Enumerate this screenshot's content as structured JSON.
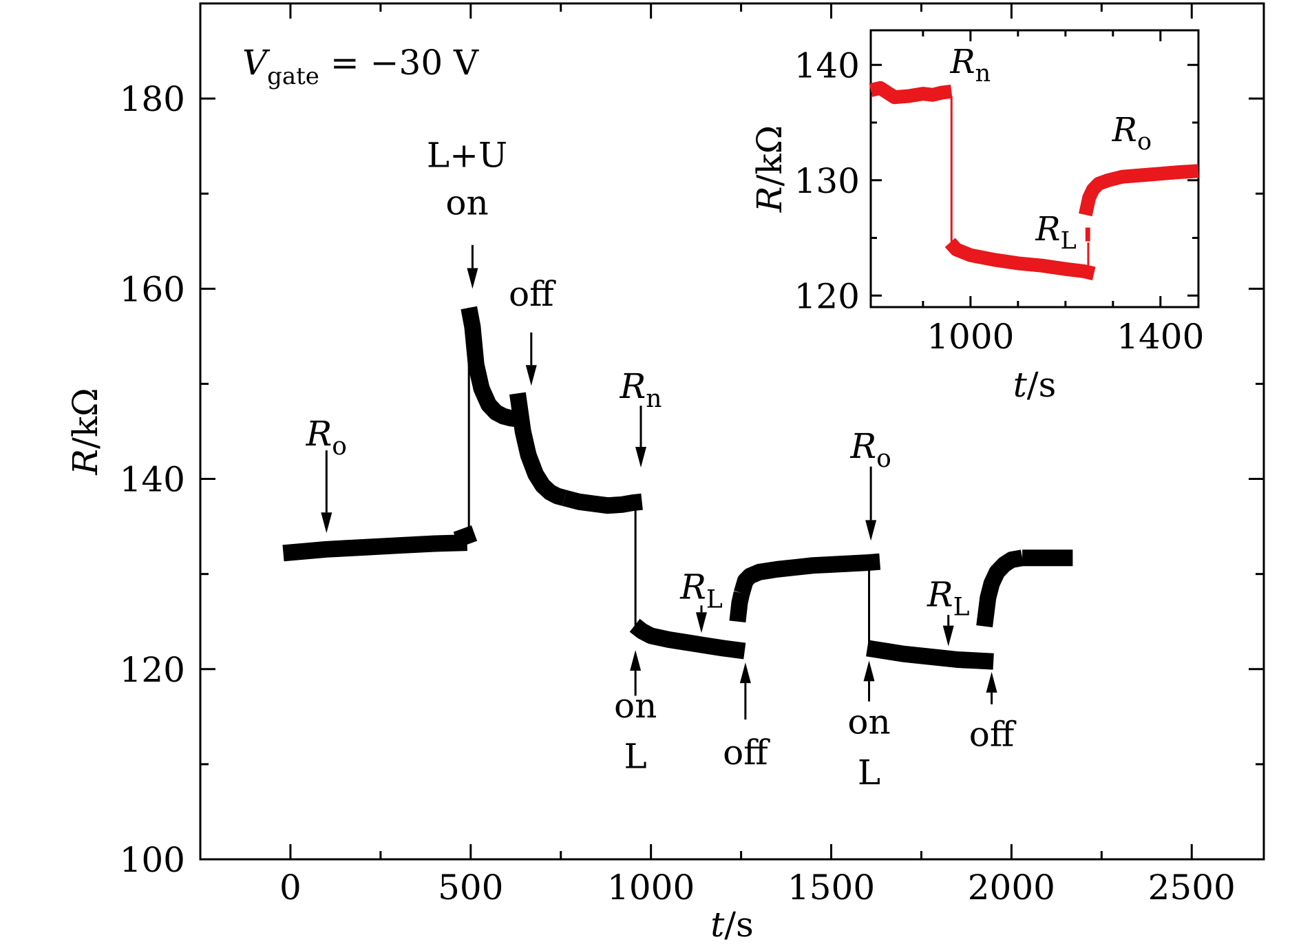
{
  "chart_data": [
    {
      "type": "line",
      "xlabel_var": "t",
      "xlabel_unit": "/s",
      "ylabel_var": "R",
      "ylabel_unit": "/kΩ",
      "xlim": [
        -250,
        2700
      ],
      "ylim": [
        100,
        190
      ],
      "xticks": [
        0,
        500,
        1000,
        1500,
        2000,
        2500
      ],
      "yticks": [
        100,
        120,
        140,
        160,
        180
      ],
      "xtick_labels": [
        "0",
        "500",
        "1000",
        "1500",
        "2000",
        "2500"
      ],
      "ytick_labels": [
        "100",
        "120",
        "140",
        "160",
        "180"
      ],
      "color": "#000000",
      "gate_label": {
        "var": "V",
        "sub": "gate",
        "rest": "= −30 V"
      },
      "segments": [
        {
          "x": [
            -20,
            100,
            200,
            300,
            400,
            490
          ],
          "y": [
            132.2,
            132.6,
            132.8,
            133.0,
            133.2,
            133.3
          ]
        },
        {
          "x": [
            460,
            510
          ],
          "y": [
            133.6,
            134.3
          ]
        },
        {
          "x": [
            495,
            505,
            515,
            530,
            550,
            570,
            590,
            610,
            630
          ],
          "y": [
            158.0,
            156.0,
            152.0,
            149.5,
            147.8,
            147.0,
            146.6,
            146.4,
            146.3
          ]
        },
        {
          "x": [
            630,
            645,
            660,
            680,
            700,
            720,
            740,
            760
          ],
          "y": [
            149.0,
            145.0,
            142.5,
            140.5,
            139.3,
            138.6,
            138.2,
            138.0
          ]
        },
        {
          "x": [
            760,
            800,
            840,
            880,
            920,
            950,
            975
          ],
          "y": [
            138.0,
            137.6,
            137.4,
            137.2,
            137.3,
            137.5,
            137.6
          ]
        },
        {
          "x": [
            955,
            975,
            1000,
            1050,
            1100,
            1150,
            1200,
            1260
          ],
          "y": [
            124.6,
            124.0,
            123.5,
            123.1,
            122.8,
            122.5,
            122.2,
            121.9
          ]
        },
        {
          "x": [
            1240,
            1246,
            1252
          ],
          "y": [
            125.0,
            127.0,
            128.0
          ]
        },
        {
          "x": [
            1252,
            1262,
            1275,
            1300,
            1350,
            1400,
            1450,
            1500,
            1550,
            1600,
            1635
          ],
          "y": [
            128.0,
            129.3,
            129.8,
            130.2,
            130.5,
            130.7,
            130.9,
            131.0,
            131.1,
            131.2,
            131.3
          ]
        },
        {
          "x": [
            1600,
            1650,
            1700,
            1750,
            1800,
            1850,
            1900,
            1950
          ],
          "y": [
            122.2,
            121.9,
            121.6,
            121.4,
            121.2,
            121.0,
            120.9,
            120.8
          ]
        },
        {
          "x": [
            1925,
            1935,
            1945,
            1960,
            1980,
            2000,
            2030
          ],
          "y": [
            124.5,
            127.5,
            129.0,
            130.2,
            131.0,
            131.5,
            131.7
          ]
        },
        {
          "x": [
            2030,
            2100,
            2170
          ],
          "y": [
            131.7,
            131.7,
            131.7
          ]
        }
      ],
      "connectors": [
        {
          "x": [
            495,
            495
          ],
          "y": [
            133.6,
            158.0
          ]
        },
        {
          "x": [
            957,
            957
          ],
          "y": [
            137.3,
            124.6
          ]
        },
        {
          "x": [
            1605,
            1605
          ],
          "y": [
            131.3,
            122.2
          ]
        }
      ],
      "annotations": [
        {
          "kind": "arrow-down",
          "x": 100,
          "y_from": 143,
          "y_to": 134.3
        },
        {
          "kind": "var",
          "var": "R",
          "sub": "o",
          "x": 100,
          "y": 143.5
        },
        {
          "kind": "arrow-down",
          "x": 505,
          "y_from": 164.6,
          "y_to": 160.0
        },
        {
          "kind": "text",
          "text": "L+U",
          "x": 490,
          "y": 172.8
        },
        {
          "kind": "text",
          "text": "on",
          "x": 490,
          "y": 167.8
        },
        {
          "kind": "arrow-down",
          "x": 668,
          "y_from": 155.4,
          "y_to": 149.8
        },
        {
          "kind": "text",
          "text": "off",
          "x": 668,
          "y": 158.2
        },
        {
          "kind": "arrow-down",
          "x": 972,
          "y_from": 147.7,
          "y_to": 141.2
        },
        {
          "kind": "var",
          "var": "R",
          "sub": "n",
          "x": 972,
          "y": 148.5
        },
        {
          "kind": "arrow-down",
          "x": 1140,
          "y_from": 126.7,
          "y_to": 123.8
        },
        {
          "kind": "var",
          "var": "R",
          "sub": "L",
          "x": 1140,
          "y": 127.4
        },
        {
          "kind": "arrow-up",
          "x": 957,
          "y_from": 117.2,
          "y_to": 122.0
        },
        {
          "kind": "text",
          "text": "on",
          "x": 957,
          "y": 114.9
        },
        {
          "kind": "text",
          "text": "L",
          "x": 957,
          "y": 109.6
        },
        {
          "kind": "arrow-up",
          "x": 1262,
          "y_from": 114.7,
          "y_to": 120.7
        },
        {
          "kind": "text",
          "text": "off",
          "x": 1262,
          "y": 110.0
        },
        {
          "kind": "arrow-down",
          "x": 1610,
          "y_from": 141.3,
          "y_to": 133.5
        },
        {
          "kind": "var",
          "var": "R",
          "sub": "o",
          "x": 1610,
          "y": 142.2
        },
        {
          "kind": "arrow-down",
          "x": 1825,
          "y_from": 125.7,
          "y_to": 122.4
        },
        {
          "kind": "var",
          "var": "R",
          "sub": "L",
          "x": 1825,
          "y": 126.6
        },
        {
          "kind": "arrow-up",
          "x": 1605,
          "y_from": 116.6,
          "y_to": 120.9
        },
        {
          "kind": "text",
          "text": "on",
          "x": 1605,
          "y": 113.2
        },
        {
          "kind": "text",
          "text": "L",
          "x": 1605,
          "y": 107.9
        },
        {
          "kind": "arrow-up",
          "x": 1945,
          "y_from": 116.3,
          "y_to": 119.7
        },
        {
          "kind": "text",
          "text": "off",
          "x": 1945,
          "y": 111.9
        }
      ]
    },
    {
      "type": "line",
      "xlabel_var": "t",
      "xlabel_unit": "/s",
      "ylabel_var": "R",
      "ylabel_unit": "/kΩ",
      "xlim": [
        790,
        1480
      ],
      "ylim": [
        119,
        143
      ],
      "xticks": [
        1000,
        1400
      ],
      "yticks": [
        120,
        130,
        140
      ],
      "xtick_labels": [
        "1000",
        "1400"
      ],
      "ytick_labels": [
        "120",
        "130",
        "140"
      ],
      "color": "#e8181c",
      "segments": [
        {
          "x": [
            790,
            810,
            840,
            870,
            900,
            920,
            940,
            960
          ],
          "y": [
            137.8,
            138.0,
            137.2,
            137.3,
            137.5,
            137.4,
            137.6,
            137.7
          ]
        },
        {
          "x": [
            957,
            970,
            1000,
            1050,
            1100,
            1150,
            1200,
            1240,
            1260
          ],
          "y": [
            124.6,
            124.0,
            123.5,
            123.1,
            122.8,
            122.6,
            122.3,
            122.1,
            121.9
          ]
        },
        {
          "x": [
            1242,
            1252
          ],
          "y": [
            125.3,
            125.3
          ]
        },
        {
          "x": [
            1242,
            1250,
            1258,
            1270,
            1290,
            1320,
            1350,
            1380,
            1410,
            1440,
            1480
          ],
          "y": [
            127.0,
            128.5,
            129.2,
            129.7,
            130.0,
            130.3,
            130.4,
            130.5,
            130.6,
            130.7,
            130.8
          ]
        }
      ],
      "connectors": [
        {
          "x": [
            960,
            960
          ],
          "y": [
            137.3,
            124.6
          ]
        },
        {
          "x": [
            1248,
            1248
          ],
          "y": [
            121.9,
            124.6
          ]
        }
      ],
      "annotations": [
        {
          "kind": "var",
          "var": "R",
          "sub": "n",
          "x": 1000,
          "y": 139.3
        },
        {
          "kind": "var",
          "var": "R",
          "sub": "L",
          "x": 1180,
          "y": 124.8
        },
        {
          "kind": "var",
          "var": "R",
          "sub": "o",
          "x": 1340,
          "y": 133.4
        }
      ]
    }
  ]
}
